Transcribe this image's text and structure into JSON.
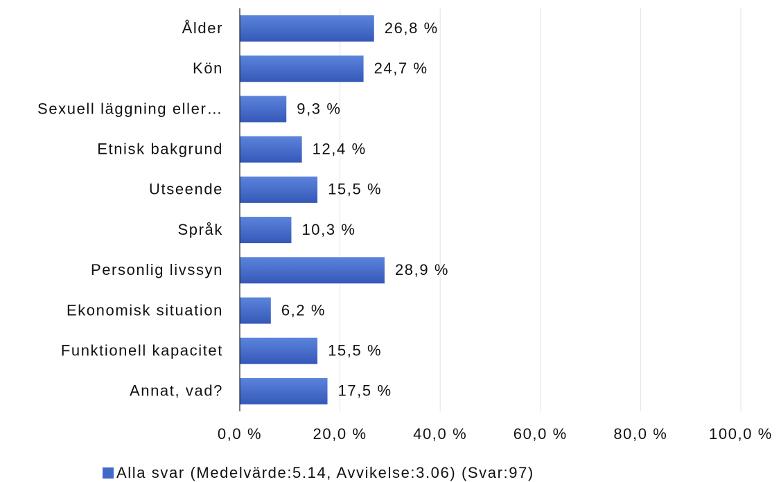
{
  "chart_data": {
    "type": "bar",
    "orientation": "horizontal",
    "categories": [
      "Ålder",
      "Kön",
      "Sexuell läggning eller…",
      "Etnisk bakgrund",
      "Utseende",
      "Språk",
      "Personlig livssyn",
      "Ekonomisk situation",
      "Funktionell kapacitet",
      "Annat, vad?"
    ],
    "series": [
      {
        "name": "Alla svar (Medelvärde:5.14, Avvikelse:3.06) (Svar:97)",
        "color": "#4169c8",
        "values": [
          26.8,
          24.7,
          9.3,
          12.4,
          15.5,
          10.3,
          28.9,
          6.2,
          15.5,
          17.5
        ],
        "value_labels": [
          "26,8 %",
          "24,7 %",
          "9,3 %",
          "12,4 %",
          "15,5 %",
          "10,3 %",
          "28,9 %",
          "6,2 %",
          "15,5 %",
          "17,5 %"
        ]
      }
    ],
    "xlim": [
      0,
      100
    ],
    "xticks": [
      {
        "value": 0,
        "label": "0,0 %"
      },
      {
        "value": 20,
        "label": "20,0 %"
      },
      {
        "value": 40,
        "label": "40,0 %"
      },
      {
        "value": 60,
        "label": "60,0 %"
      },
      {
        "value": 80,
        "label": "80,0 %"
      },
      {
        "value": 100,
        "label": "100,0 %"
      }
    ],
    "grid": true,
    "legend": "bottom"
  }
}
